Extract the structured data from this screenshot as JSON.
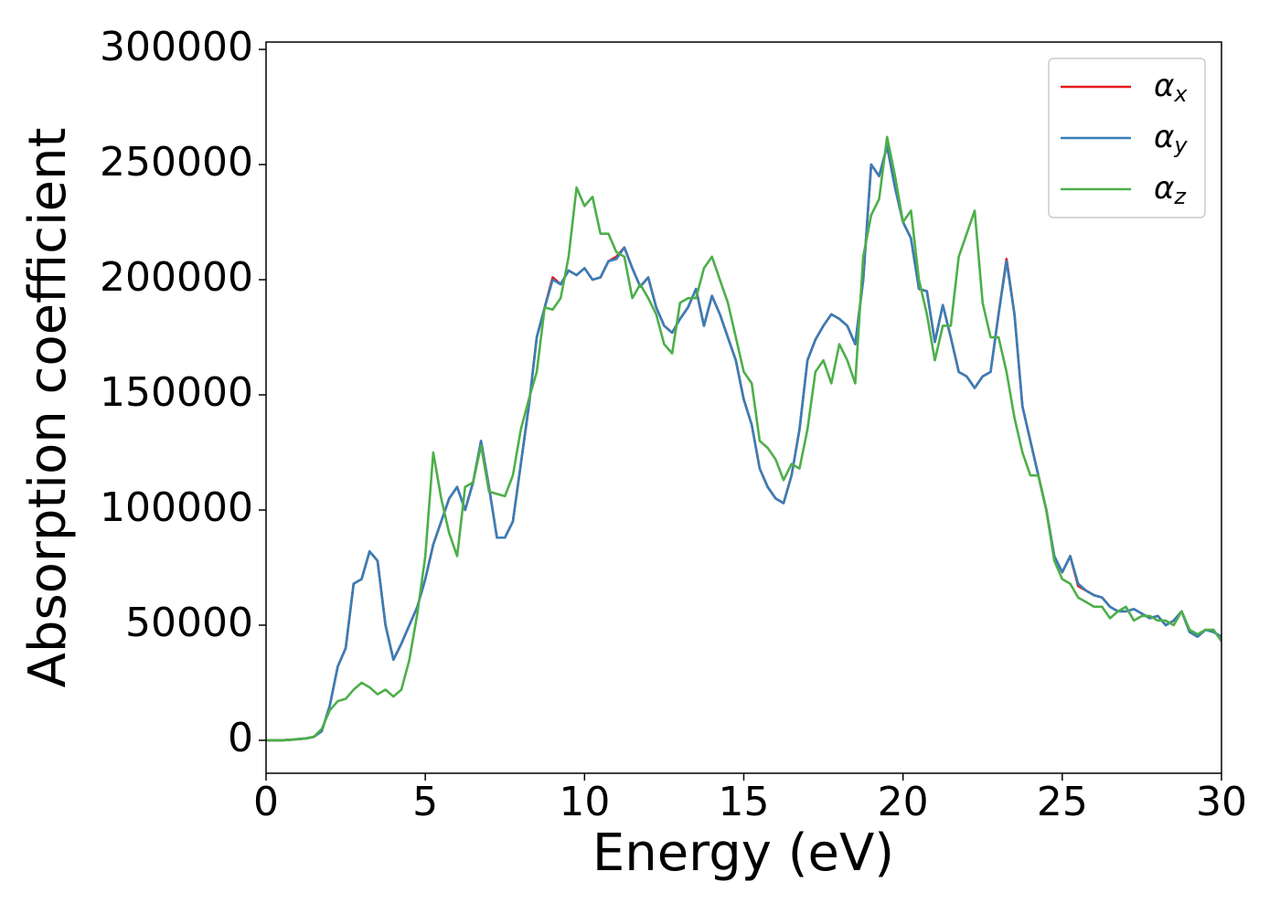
{
  "chart_data": {
    "type": "line",
    "xlabel": "Energy (eV)",
    "ylabel": "Absorption coefficient",
    "x": [
      0,
      0.25,
      0.5,
      0.75,
      1,
      1.25,
      1.5,
      1.75,
      2,
      2.25,
      2.5,
      2.75,
      3,
      3.25,
      3.5,
      3.75,
      4,
      4.25,
      4.5,
      4.75,
      5,
      5.25,
      5.5,
      5.75,
      6,
      6.25,
      6.5,
      6.75,
      7,
      7.25,
      7.5,
      7.75,
      8,
      8.25,
      8.5,
      8.75,
      9,
      9.25,
      9.5,
      9.75,
      10,
      10.25,
      10.5,
      10.75,
      11,
      11.25,
      11.5,
      11.75,
      12,
      12.25,
      12.5,
      12.75,
      13,
      13.25,
      13.5,
      13.75,
      14,
      14.25,
      14.5,
      14.75,
      15,
      15.25,
      15.5,
      15.75,
      16,
      16.25,
      16.5,
      16.75,
      17,
      17.25,
      17.5,
      17.75,
      18,
      18.25,
      18.5,
      18.75,
      19,
      19.25,
      19.5,
      19.75,
      20,
      20.25,
      20.5,
      20.75,
      21,
      21.25,
      21.5,
      21.75,
      22,
      22.25,
      22.5,
      22.75,
      23,
      23.25,
      23.5,
      23.75,
      24,
      24.25,
      24.5,
      24.75,
      25,
      25.25,
      25.5,
      25.75,
      26,
      26.25,
      26.5,
      26.75,
      27,
      27.25,
      27.5,
      27.75,
      28,
      28.25,
      28.5,
      28.75,
      29,
      29.25,
      29.5,
      29.75,
      30
    ],
    "series": [
      {
        "name": "αx",
        "color": "#e41a1c",
        "values": [
          0,
          0,
          0,
          200,
          500,
          800,
          1500,
          4000,
          15000,
          32000,
          40000,
          68000,
          70000,
          82000,
          78000,
          50000,
          35000,
          42000,
          50000,
          58000,
          70000,
          85000,
          95000,
          105000,
          110000,
          100000,
          112000,
          130000,
          110000,
          88000,
          88000,
          95000,
          120000,
          145000,
          175000,
          188000,
          201000,
          198000,
          204000,
          202000,
          205000,
          200000,
          201000,
          208000,
          210000,
          214000,
          205000,
          197000,
          201000,
          188000,
          180000,
          177000,
          183000,
          188000,
          196000,
          180000,
          193000,
          185000,
          175000,
          165000,
          148000,
          137000,
          118000,
          110000,
          105000,
          103000,
          115000,
          135000,
          165000,
          174000,
          180000,
          185000,
          183000,
          180000,
          172000,
          200000,
          250000,
          245000,
          258000,
          240000,
          225000,
          218000,
          196000,
          195000,
          173000,
          189000,
          175000,
          160000,
          158000,
          153000,
          158000,
          160000,
          185000,
          209000,
          185000,
          145000,
          130000,
          115000,
          100000,
          80000,
          73000,
          80000,
          67000,
          65000,
          63000,
          62000,
          58000,
          56000,
          56000,
          57000,
          55000,
          53000,
          54000,
          50000,
          52000,
          56000,
          47000,
          45000,
          48000,
          47000,
          45000
        ]
      },
      {
        "name": "αy",
        "color": "#377eb8",
        "values": [
          0,
          0,
          0,
          200,
          500,
          800,
          1500,
          4000,
          15000,
          32000,
          40000,
          68000,
          70000,
          82000,
          78000,
          50000,
          35000,
          42000,
          50000,
          58000,
          70000,
          85000,
          95000,
          105000,
          110000,
          100000,
          112000,
          130000,
          110000,
          88000,
          88000,
          95000,
          120000,
          145000,
          175000,
          188000,
          200000,
          198000,
          204000,
          202000,
          205000,
          200000,
          201000,
          208000,
          209000,
          214000,
          205000,
          197000,
          201000,
          188000,
          180000,
          177000,
          183000,
          188000,
          196000,
          180000,
          193000,
          185000,
          175000,
          165000,
          148000,
          137000,
          118000,
          110000,
          105000,
          103000,
          115000,
          135000,
          165000,
          174000,
          180000,
          185000,
          183000,
          180000,
          172000,
          200000,
          250000,
          245000,
          258000,
          240000,
          225000,
          218000,
          196000,
          195000,
          173000,
          189000,
          175000,
          160000,
          158000,
          153000,
          158000,
          160000,
          185000,
          208000,
          185000,
          145000,
          130000,
          115000,
          100000,
          80000,
          73000,
          80000,
          68000,
          65000,
          63000,
          62000,
          58000,
          56000,
          56000,
          57000,
          55000,
          53000,
          54000,
          50000,
          52000,
          56000,
          47000,
          45000,
          48000,
          47000,
          45000
        ]
      },
      {
        "name": "αz",
        "color": "#4daf4a",
        "values": [
          0,
          0,
          0,
          200,
          500,
          800,
          1500,
          5000,
          13000,
          17000,
          18000,
          22000,
          25000,
          23000,
          20000,
          22000,
          19000,
          22000,
          35000,
          55000,
          80000,
          125000,
          105000,
          90000,
          80000,
          110000,
          112000,
          128000,
          108000,
          107000,
          106000,
          115000,
          135000,
          148000,
          160000,
          188000,
          187000,
          192000,
          210000,
          240000,
          232000,
          236000,
          220000,
          220000,
          212000,
          210000,
          192000,
          198000,
          192000,
          185000,
          172000,
          168000,
          190000,
          192000,
          192000,
          205000,
          210000,
          200000,
          190000,
          175000,
          160000,
          155000,
          130000,
          127000,
          122000,
          113000,
          120000,
          118000,
          135000,
          160000,
          165000,
          155000,
          172000,
          165000,
          155000,
          210000,
          228000,
          235000,
          262000,
          245000,
          225000,
          230000,
          200000,
          185000,
          165000,
          180000,
          180000,
          210000,
          220000,
          230000,
          190000,
          175000,
          175000,
          160000,
          140000,
          125000,
          115000,
          115000,
          100000,
          78000,
          70000,
          68000,
          62000,
          60000,
          58000,
          58000,
          53000,
          56000,
          58000,
          52000,
          54000,
          54000,
          52000,
          52000,
          50000,
          56000,
          48000,
          46000,
          48000,
          48000,
          43000
        ]
      }
    ],
    "xlim": [
      0,
      30
    ],
    "xticks": [
      0,
      5,
      10,
      15,
      20,
      25,
      30
    ],
    "ylim": [
      -14300,
      303200
    ],
    "yticks": [
      0,
      50000,
      100000,
      150000,
      200000,
      250000,
      300000
    ],
    "grid": false,
    "legend": "upper right"
  }
}
